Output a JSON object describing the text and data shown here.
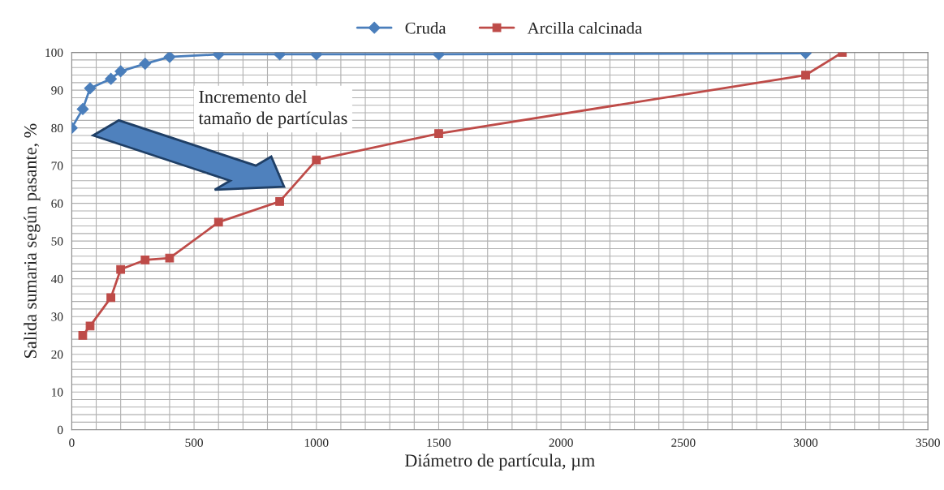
{
  "chart_data": {
    "type": "line",
    "xlabel": "Diámetro de partícula, µm",
    "ylabel": "Salida sumaria según pasante, %",
    "xlim": [
      0,
      3500
    ],
    "xticks": [
      0,
      500,
      1000,
      1500,
      2000,
      2500,
      3000,
      3500
    ],
    "ylim": [
      0,
      100
    ],
    "yticks": [
      0,
      10,
      20,
      30,
      40,
      50,
      60,
      70,
      80,
      90,
      100
    ],
    "grid": true,
    "legend": "top",
    "line_style": "solid",
    "annotations": [
      "Incremento del\ntamaño de partículas"
    ],
    "series": [
      {
        "name": "Cruda",
        "color": "#4a7ebb",
        "marker": "diamond",
        "x": [
          0,
          45,
          75,
          160,
          200,
          300,
          400,
          600,
          850,
          1000,
          1500,
          3000
        ],
        "values": [
          80,
          85,
          90.5,
          93,
          95,
          97,
          98.8,
          99.5,
          99.5,
          99.5,
          99.5,
          99.8
        ]
      },
      {
        "name": "Arcilla calcinada",
        "color": "#be4b48",
        "marker": "square",
        "x": [
          45,
          75,
          160,
          200,
          300,
          400,
          600,
          850,
          1000,
          1500,
          3000,
          3150
        ],
        "values": [
          25,
          27.5,
          35,
          42.5,
          45,
          45.5,
          55,
          60.5,
          71.5,
          78.5,
          94,
          100
        ]
      }
    ]
  }
}
